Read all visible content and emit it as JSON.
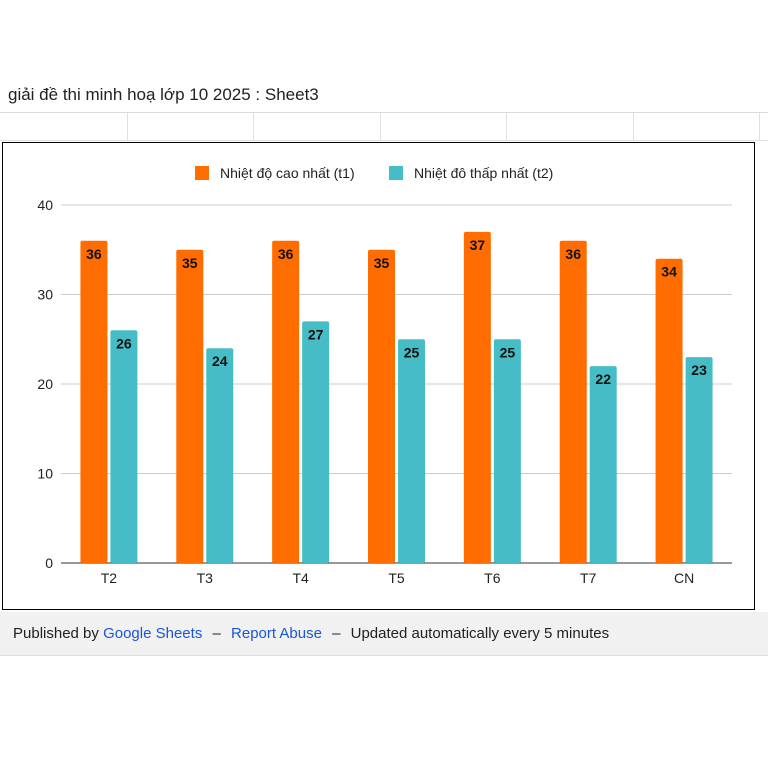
{
  "doc": {
    "title": "giải đề thi minh hoạ lớp 10 2025 : Sheet3"
  },
  "footer": {
    "published_by": "Published by",
    "google_sheets": "Google Sheets",
    "dash1": "–",
    "report_abuse": "Report Abuse",
    "dash2": "–",
    "updated": "Updated automatically every 5 minutes"
  },
  "chart_data": {
    "type": "bar",
    "title": "",
    "xlabel": "",
    "ylabel": "",
    "categories": [
      "T2",
      "T3",
      "T4",
      "T5",
      "T6",
      "T7",
      "CN"
    ],
    "series": [
      {
        "name": "Nhiệt độ cao nhất  (t1)",
        "color": "#ff6d01",
        "values": [
          36,
          35,
          36,
          35,
          37,
          36,
          34
        ]
      },
      {
        "name": "Nhiệt đô thấp nhất (t2)",
        "color": "#46bdc6",
        "values": [
          26,
          24,
          27,
          25,
          25,
          22,
          23
        ]
      }
    ],
    "ylim": [
      0,
      40
    ],
    "yticks": [
      0,
      10,
      20,
      30,
      40
    ],
    "grid": true,
    "legend": "top-center",
    "data_labels": true
  }
}
